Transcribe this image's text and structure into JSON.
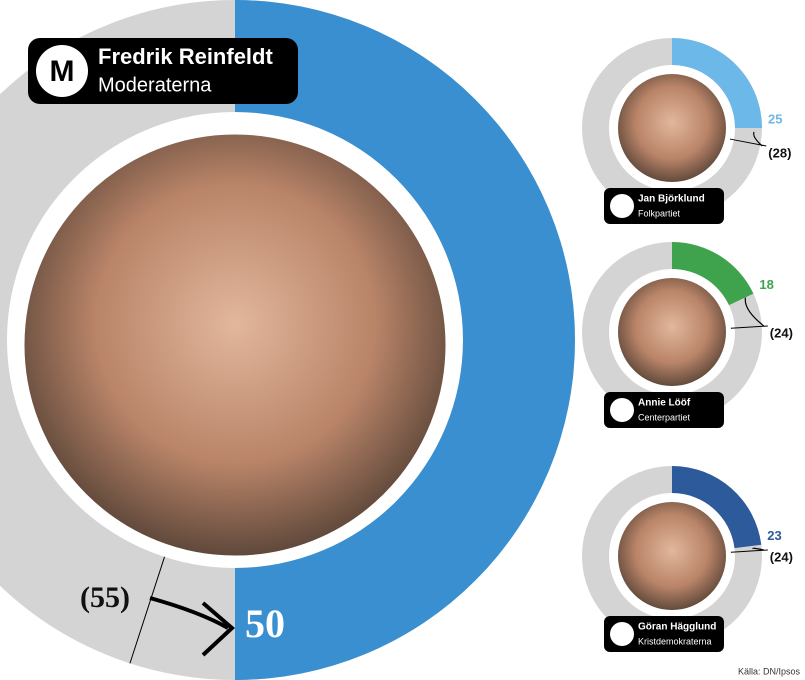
{
  "chart_data": [
    {
      "type": "donut",
      "title": "Fredrik Reinfeldt",
      "subtitle": "Moderaterna",
      "values": [
        50
      ],
      "previous": {
        "value": 55,
        "label": "(55)"
      },
      "color": "#3a8fd0",
      "ylim": [
        0,
        100
      ]
    },
    {
      "type": "donut",
      "title": "Jan Björklund",
      "subtitle": "Folkpartiet",
      "values": [
        25
      ],
      "previous": {
        "value": 28,
        "label": "(28)"
      },
      "color": "#6cb8e8",
      "ylim": [
        0,
        100
      ]
    },
    {
      "type": "donut",
      "title": "Annie Lööf",
      "subtitle": "Centerpartiet",
      "values": [
        18
      ],
      "previous": {
        "value": 24,
        "label": "(24)"
      },
      "color": "#3fa34d",
      "ylim": [
        0,
        100
      ]
    },
    {
      "type": "donut",
      "title": "Göran Hägglund",
      "subtitle": "Kristdemokraterna",
      "values": [
        23
      ],
      "previous": {
        "value": 24,
        "label": "(24)"
      },
      "color": "#2d5a9b",
      "ylim": [
        0,
        100
      ]
    }
  ],
  "source": "Källa: DN/Ipsos"
}
